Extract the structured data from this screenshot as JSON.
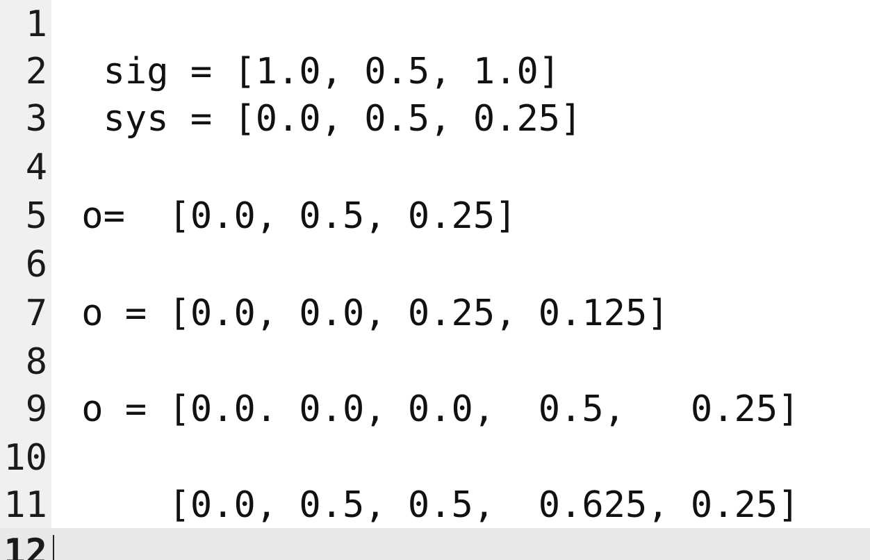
{
  "editor": {
    "lines": [
      {
        "number": "1",
        "text": ""
      },
      {
        "number": "2",
        "text": "  sig = [1.0, 0.5, 1.0]"
      },
      {
        "number": "3",
        "text": "  sys = [0.0, 0.5, 0.25]"
      },
      {
        "number": "4",
        "text": ""
      },
      {
        "number": "5",
        "text": " o=  [0.0, 0.5, 0.25]"
      },
      {
        "number": "6",
        "text": ""
      },
      {
        "number": "7",
        "text": " o = [0.0, 0.0, 0.25, 0.125]"
      },
      {
        "number": "8",
        "text": ""
      },
      {
        "number": "9",
        "text": " o = [0.0. 0.0, 0.0,  0.5,   0.25]"
      },
      {
        "number": "10",
        "text": ""
      },
      {
        "number": "11",
        "text": "     [0.0, 0.5, 0.5,  0.625, 0.25]"
      },
      {
        "number": "12",
        "text": ""
      }
    ]
  }
}
